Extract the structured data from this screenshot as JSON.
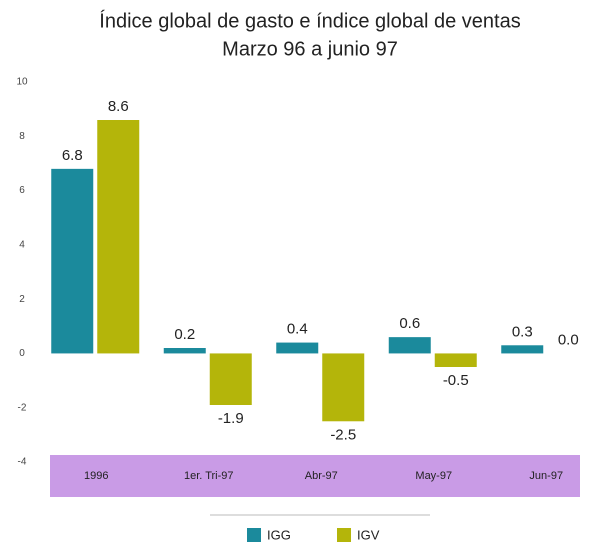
{
  "chart_data": {
    "type": "bar",
    "title": "Índice global de gasto e índice global de ventas",
    "subtitle": "Marzo 96 a junio 97",
    "categories": [
      "1996",
      "1er. Tri-97",
      "Abr-97",
      "May-97",
      "Jun-97"
    ],
    "series": [
      {
        "name": "IGG",
        "color": "#1b8a9c",
        "values": [
          6.8,
          0.2,
          0.4,
          0.6,
          0.3
        ],
        "value_labels": [
          "6.8",
          "0.2",
          "0.4",
          "0.6",
          "0.3"
        ]
      },
      {
        "name": "IGV",
        "color": "#b4b50a",
        "values": [
          8.6,
          -1.9,
          -2.5,
          -0.5,
          0.0
        ],
        "value_labels": [
          "8.6",
          "-1.9",
          "-2.5",
          "-0.5",
          "0.0"
        ]
      }
    ],
    "ylim": [
      -4,
      10
    ],
    "yticks": [
      10,
      8,
      6,
      4,
      2,
      0,
      -2,
      -4
    ],
    "grid": false,
    "legend": "bottom"
  }
}
